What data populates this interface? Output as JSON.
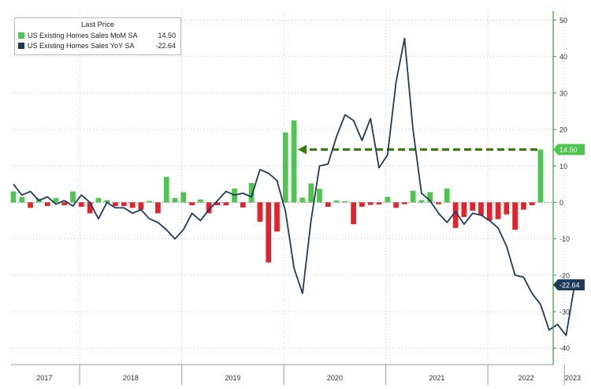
{
  "legend": {
    "title": "Last Price",
    "items": [
      {
        "name": "US Existing Homes Sales MoM SA",
        "value": "14.50"
      },
      {
        "name": "US Existing Homes Sales YoY SA",
        "value": "-22.64"
      }
    ]
  },
  "colors": {
    "pos_bar": "#4cc64c",
    "neg_bar": "#e8202a",
    "line": "#1f3b5c",
    "arrow": "#3a7a0e",
    "axis_green": "#2fa82f"
  },
  "chart_data": {
    "type": "bar+line",
    "y_ticks": [
      50,
      40,
      30,
      20,
      10,
      0,
      -10,
      -20,
      -30,
      -40
    ],
    "ylim": [
      -44.5,
      52.5
    ],
    "grid": "dotted",
    "legend_position": "top-left",
    "year_labels": [
      "2017",
      "2018",
      "2019",
      "2020",
      "2021",
      "2022",
      "2023"
    ],
    "series": [
      {
        "name": "US Existing Homes Sales MoM SA",
        "kind": "bar",
        "last_value": 14.5,
        "last_label": "14.50",
        "values": [
          3.0,
          1.5,
          -1.5,
          1.0,
          -1.0,
          1.2,
          -0.8,
          3.0,
          -1.2,
          -3.0,
          1.2,
          0.6,
          -1.0,
          -1.0,
          -1.5,
          -2.0,
          0.4,
          -3.0,
          7.0,
          1.2,
          2.8,
          -0.8,
          0.8,
          -3.0,
          -0.8,
          -0.8,
          3.8,
          -1.4,
          5.3,
          -5.3,
          -16.5,
          -8.0,
          19.2,
          22.5,
          1.3,
          5.2,
          3.7,
          -1.2,
          0.5,
          0.3,
          -6.0,
          -1.2,
          -0.7,
          -0.6,
          1.5,
          -1.5,
          -0.5,
          3.2,
          0.6,
          2.8,
          -0.5,
          3.8,
          -7.0,
          -4.0,
          -2.3,
          -3.6,
          -5.0,
          -4.6,
          -3.3,
          -7.5,
          -2.0,
          -0.8,
          14.5
        ]
      },
      {
        "name": "US Existing Homes Sales YoY SA",
        "kind": "line",
        "last_value": -22.64,
        "last_label": "-22.64",
        "values": [
          5.0,
          2.0,
          3.0,
          0.5,
          1.5,
          -0.5,
          0.5,
          -1.0,
          2.0,
          0.0,
          -4.5,
          0.0,
          -1.5,
          -1.5,
          -3.0,
          -2.0,
          -4.5,
          -5.5,
          -7.5,
          -10.0,
          -7.5,
          -3.0,
          -5.0,
          -2.0,
          0.5,
          3.0,
          2.0,
          2.5,
          1.5,
          9.0,
          8.0,
          6.0,
          -2.5,
          -18.0,
          -25.0,
          -5.0,
          10.0,
          10.5,
          18.0,
          24.0,
          22.5,
          17.0,
          23.0,
          9.5,
          13.0,
          33.0,
          45.0,
          20.0,
          2.5,
          0.5,
          -3.0,
          -5.5,
          -2.5,
          -6.0,
          -3.0,
          -3.5,
          -5.0,
          -7.0,
          -12.0,
          -20.0,
          -20.5,
          -25.0,
          -28.0,
          -35.0,
          -33.5,
          -36.5,
          -22.64
        ]
      }
    ],
    "annotation": "dashed arrow pointing left at 14.5"
  }
}
